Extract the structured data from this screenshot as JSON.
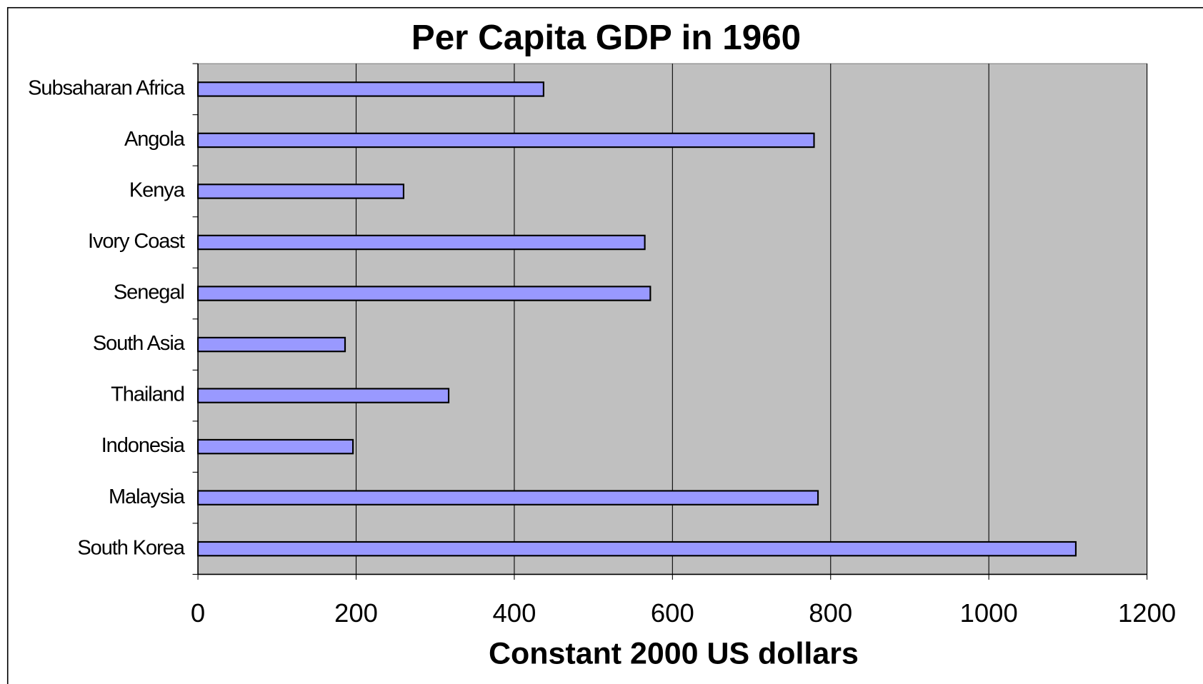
{
  "chart_data": {
    "type": "bar",
    "orientation": "horizontal",
    "title": "Per Capita GDP in 1960",
    "x_label": "Constant 2000 US dollars",
    "categories": [
      "Subsaharan Africa",
      "Angola",
      "Kenya",
      "Ivory Coast",
      "Senegal",
      "South Asia",
      "Thailand",
      "Indonesia",
      "Malaysia",
      "South Korea"
    ],
    "values": [
      437,
      779,
      260,
      565,
      572,
      186,
      317,
      196,
      784,
      1110
    ],
    "color": "#9999ff",
    "xlim": [
      0,
      1200
    ],
    "xticks": [
      0,
      200,
      400,
      600,
      800,
      1000,
      1200
    ],
    "grid": true
  }
}
